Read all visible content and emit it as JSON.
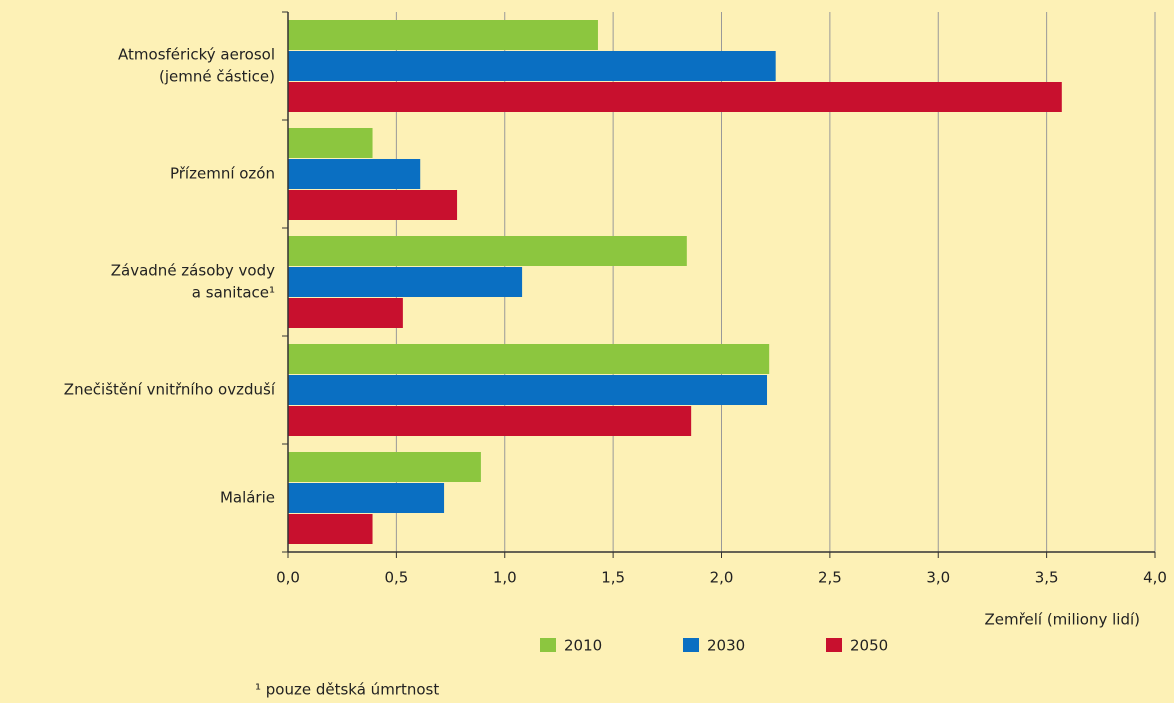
{
  "chart_data": {
    "type": "bar",
    "orientation": "horizontal",
    "categories": [
      [
        "Atmosférický aerosol",
        "(jemné částice)"
      ],
      [
        "Přízemní ozón"
      ],
      [
        "Závadné zásoby vody",
        "a sanitace¹"
      ],
      [
        "Znečištění vnitřního ovzduší"
      ],
      [
        "Malárie"
      ]
    ],
    "series": [
      {
        "name": "2010",
        "color": "#8cc63f",
        "values": [
          1.43,
          0.39,
          1.84,
          2.22,
          0.89
        ]
      },
      {
        "name": "2030",
        "color": "#0a6fc2",
        "values": [
          2.25,
          0.61,
          1.08,
          2.21,
          0.72
        ]
      },
      {
        "name": "2050",
        "color": "#c8102e",
        "values": [
          3.57,
          0.78,
          0.53,
          1.86,
          0.39
        ]
      }
    ],
    "xlabel": "Zemřelí (miliony lidí)",
    "xlim": [
      0,
      4
    ],
    "xticks": [
      {
        "value": 0,
        "label": "0,0"
      },
      {
        "value": 0.5,
        "label": "0,5"
      },
      {
        "value": 1,
        "label": "1,0"
      },
      {
        "value": 1.5,
        "label": "1,5"
      },
      {
        "value": 2,
        "label": "2,0"
      },
      {
        "value": 2.5,
        "label": "2,5"
      },
      {
        "value": 3,
        "label": "3,0"
      },
      {
        "value": 3.5,
        "label": "3,5"
      },
      {
        "value": 4,
        "label": "4,0"
      }
    ],
    "grid": true,
    "footnote": "¹ pouze dětská úmrtnost"
  }
}
